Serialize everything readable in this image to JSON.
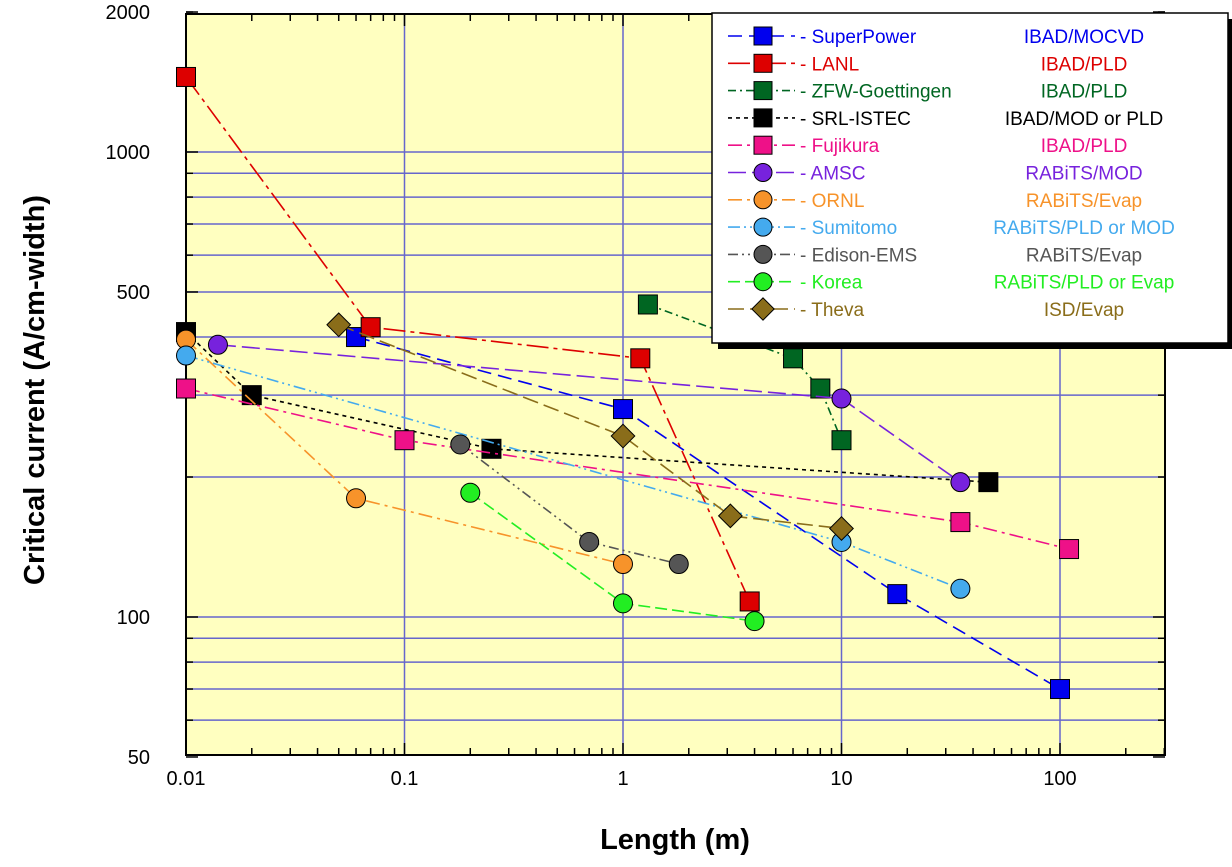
{
  "chart_data": {
    "type": "scatter",
    "title": "",
    "xlabel": "Length (m)",
    "ylabel": "Critical current (A/cm-width)",
    "xscale": "log",
    "yscale": "log",
    "xlim": [
      0.01,
      300
    ],
    "ylim": [
      45,
      2000
    ],
    "xticks": [
      "0.01",
      "0.1",
      "1",
      "10",
      "100"
    ],
    "yticks": [
      "50",
      "100",
      "500",
      "1000",
      "2000"
    ],
    "grid": true,
    "plot_background": "#ffffc0",
    "grid_color": "#6666cc",
    "legend_position": "top-right",
    "series": [
      {
        "name": "SuperPower",
        "process": "IBAD/MOCVD",
        "color": "#0000ee",
        "marker": "square",
        "dash": "14,7",
        "points": [
          [
            0.06,
            400
          ],
          [
            1.0,
            280
          ],
          [
            18,
            112
          ],
          [
            100,
            70
          ]
        ]
      },
      {
        "name": "LANL",
        "process": "IBAD/PLD",
        "color": "#dd0000",
        "marker": "square",
        "dash": "22,5,4,5",
        "points": [
          [
            0.01,
            1450
          ],
          [
            0.07,
            420
          ],
          [
            1.2,
            360
          ],
          [
            3.8,
            108
          ]
        ]
      },
      {
        "name": "ZFW-Goettingen",
        "process": "IBAD/PLD",
        "color": "#006622",
        "marker": "square",
        "dash": "8,4,2,4",
        "points": [
          [
            1.3,
            470
          ],
          [
            6,
            360
          ],
          [
            8,
            310
          ],
          [
            10,
            240
          ]
        ]
      },
      {
        "name": "SRL-ISTEC",
        "process": "IBAD/MOD or PLD",
        "color": "#000000",
        "marker": "square",
        "dash": "4,4",
        "points": [
          [
            0.01,
            410
          ],
          [
            0.02,
            300
          ],
          [
            0.25,
            230
          ],
          [
            47,
            195
          ]
        ]
      },
      {
        "name": "Fujikura",
        "process": "IBAD/PLD",
        "color": "#ee1188",
        "marker": "square",
        "dash": "14,5,3,5",
        "points": [
          [
            0.01,
            310
          ],
          [
            0.1,
            240
          ],
          [
            35,
            160
          ],
          [
            110,
            140
          ]
        ]
      },
      {
        "name": "AMSC",
        "process": "RABiTS/MOD",
        "color": "#7722dd",
        "marker": "circle",
        "dash": "18,6",
        "points": [
          [
            0.014,
            385
          ],
          [
            10,
            295
          ],
          [
            35,
            195
          ]
        ]
      },
      {
        "name": "ORNL",
        "process": "RABiTS/Evap",
        "color": "#f7932a",
        "marker": "circle",
        "dash": "14,5,3,5",
        "points": [
          [
            0.01,
            395
          ],
          [
            0.06,
            180
          ],
          [
            1.0,
            130
          ]
        ]
      },
      {
        "name": "Sumitomo",
        "process": "RABiTS/PLD or MOD",
        "color": "#44aaee",
        "marker": "circle",
        "dash": "12,4,2,4,2,4",
        "points": [
          [
            0.01,
            365
          ],
          [
            10,
            145
          ],
          [
            35,
            115
          ]
        ]
      },
      {
        "name": "Edison-EMS",
        "process": "RABiTS/Evap",
        "color": "#555555",
        "marker": "circle",
        "dash": "10,4,2,4,2,4",
        "points": [
          [
            0.18,
            235
          ],
          [
            0.7,
            145
          ],
          [
            1.8,
            130
          ]
        ]
      },
      {
        "name": "Korea",
        "process": "RABiTS/PLD or Evap",
        "color": "#22ee22",
        "marker": "circle",
        "dash": "12,5",
        "points": [
          [
            0.2,
            185
          ],
          [
            1.0,
            107
          ],
          [
            4,
            98
          ]
        ]
      },
      {
        "name": "Theva",
        "process": "ISD/Evap",
        "color": "#8a6d1a",
        "marker": "diamond",
        "dash": "16,6",
        "points": [
          [
            0.05,
            425
          ],
          [
            1.0,
            245
          ],
          [
            3.1,
            165
          ],
          [
            10,
            155
          ]
        ]
      }
    ]
  }
}
